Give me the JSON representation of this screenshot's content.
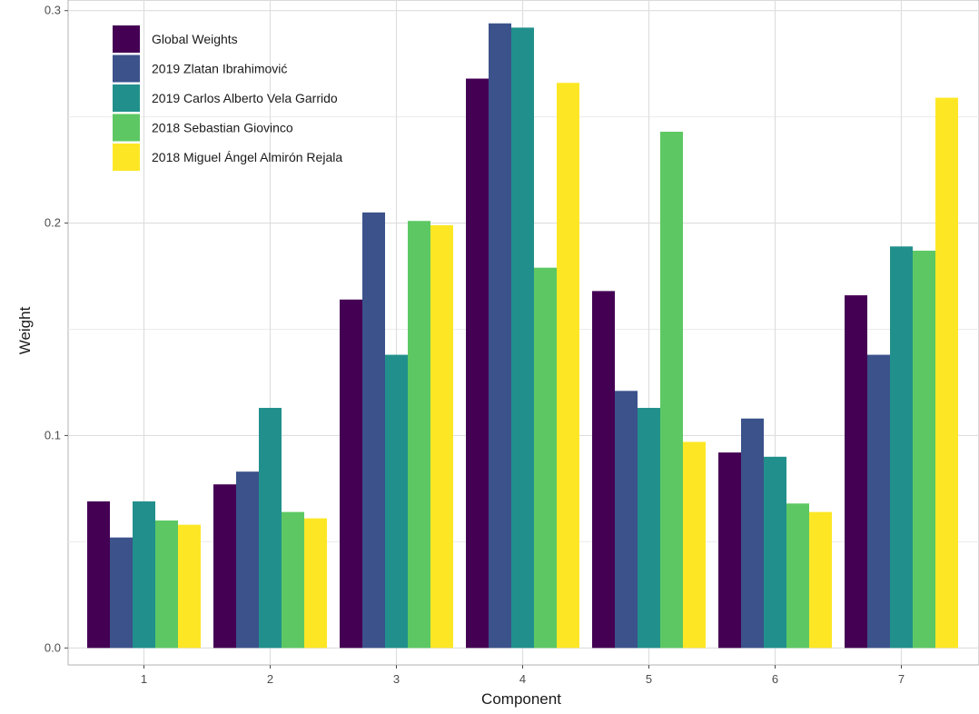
{
  "chart_data": {
    "type": "bar",
    "xlabel": "Component",
    "ylabel": "Weight",
    "categories": [
      "1",
      "2",
      "3",
      "4",
      "5",
      "6",
      "7"
    ],
    "ylim": [
      -0.008,
      0.305
    ],
    "yticks": [
      0.0,
      0.1,
      0.2,
      0.3
    ],
    "yticklabels": [
      "0.0",
      "0.1",
      "0.2",
      "0.3"
    ],
    "grid": true,
    "legend_position": "top-left",
    "series": [
      {
        "name": "Global Weights",
        "color": "#440154",
        "values": [
          0.069,
          0.077,
          0.164,
          0.268,
          0.168,
          0.092,
          0.166
        ]
      },
      {
        "name": "2019 Zlatan Ibrahimović",
        "color": "#3b528b",
        "values": [
          0.052,
          0.083,
          0.205,
          0.294,
          0.121,
          0.108,
          0.138
        ]
      },
      {
        "name": "2019 Carlos Alberto Vela Garrido",
        "color": "#21908c",
        "values": [
          0.069,
          0.113,
          0.138,
          0.292,
          0.113,
          0.09,
          0.189
        ]
      },
      {
        "name": "2018 Sebastian Giovinco",
        "color": "#5dc863",
        "values": [
          0.06,
          0.064,
          0.201,
          0.179,
          0.243,
          0.068,
          0.187
        ]
      },
      {
        "name": "2018 Miguel Ángel Almirón Rejala",
        "color": "#fde725",
        "values": [
          0.058,
          0.061,
          0.199,
          0.266,
          0.097,
          0.064,
          0.259
        ]
      }
    ]
  }
}
